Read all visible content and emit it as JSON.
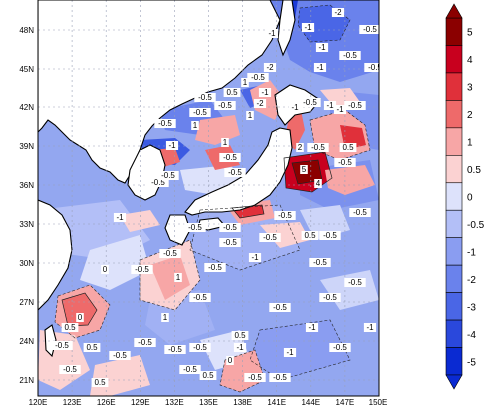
{
  "map": {
    "type": "filled-contour-map",
    "region": "Japan Sea / Northwest Pacific",
    "lon_range": [
      120,
      150
    ],
    "lat_range": [
      20,
      50
    ],
    "x_ticks": [
      "120E",
      "123E",
      "126E",
      "129E",
      "132E",
      "135E",
      "138E",
      "141E",
      "144E",
      "147E",
      "150E"
    ],
    "y_ticks": [
      "21N",
      "24N",
      "27N",
      "30N",
      "33N",
      "36N",
      "39N",
      "42N",
      "45N",
      "48N"
    ],
    "grid": "dashed",
    "contour_labels": [
      {
        "text": "-2"
      },
      {
        "text": "-1"
      },
      {
        "text": "-0.5"
      },
      {
        "text": "-1"
      },
      {
        "text": "-0.5"
      },
      {
        "text": "-0.5"
      },
      {
        "text": "-1"
      },
      {
        "text": "-2"
      },
      {
        "text": "-1"
      },
      {
        "text": "-0.5"
      },
      {
        "text": "1"
      },
      {
        "text": "-1"
      },
      {
        "text": "-0.5"
      },
      {
        "text": "0.5"
      },
      {
        "text": "-0.5"
      },
      {
        "text": "-2"
      },
      {
        "text": "1"
      },
      {
        "text": "-1"
      },
      {
        "text": "-0.5"
      },
      {
        "text": "-1"
      },
      {
        "text": "-0.5"
      },
      {
        "text": "-1"
      },
      {
        "text": "-0.5"
      },
      {
        "text": "1"
      },
      {
        "text": "-0.5"
      },
      {
        "text": "-1"
      },
      {
        "text": "1"
      },
      {
        "text": "-0.5"
      },
      {
        "text": "-0.5"
      },
      {
        "text": "5"
      },
      {
        "text": "4"
      },
      {
        "text": "2"
      },
      {
        "text": "-0.5"
      },
      {
        "text": "0.5"
      },
      {
        "text": "-0.5"
      },
      {
        "text": "-0.5"
      },
      {
        "text": "-0.5"
      },
      {
        "text": "-1"
      },
      {
        "text": "-0.5"
      },
      {
        "text": "-0.5"
      },
      {
        "text": "0.5"
      },
      {
        "text": "-0.5"
      },
      {
        "text": "-0.5"
      },
      {
        "text": "-0.5"
      },
      {
        "text": "0"
      },
      {
        "text": "1"
      },
      {
        "text": "-0.5"
      },
      {
        "text": "-0.5"
      },
      {
        "text": "0.5"
      },
      {
        "text": "0"
      },
      {
        "text": "-0.5"
      },
      {
        "text": "0.5"
      },
      {
        "text": "-0.5"
      },
      {
        "text": "-0.5"
      },
      {
        "text": "-1"
      },
      {
        "text": "1"
      },
      {
        "text": "-0.5"
      },
      {
        "text": "-0.5"
      },
      {
        "text": "-0.5"
      },
      {
        "text": "0.5"
      },
      {
        "text": "0.5"
      },
      {
        "text": "-0.5"
      },
      {
        "text": "-1"
      },
      {
        "text": "-0.5"
      },
      {
        "text": "-0.5"
      },
      {
        "text": "-0.5"
      },
      {
        "text": "-0.5"
      },
      {
        "text": "-0.5"
      },
      {
        "text": "-1"
      },
      {
        "text": "-0.5"
      },
      {
        "text": "-1"
      },
      {
        "text": "-1"
      },
      {
        "text": "-0.5"
      },
      {
        "text": "-0.5"
      },
      {
        "text": "0"
      },
      {
        "text": "-0.5"
      },
      {
        "text": "-0.5"
      },
      {
        "text": "0.5"
      },
      {
        "text": "-0.5"
      }
    ],
    "colors": {
      "land": "#ffffff",
      "coast": "#000000",
      "grid": "#9aa0b8"
    }
  },
  "colorbar": {
    "levels": [
      "5",
      "4",
      "3",
      "2",
      "1",
      "0.5",
      "0",
      "-0.5",
      "-1",
      "-2",
      "-3",
      "-4",
      "-5"
    ],
    "colors": [
      "#8b0000",
      "#c8001e",
      "#e0303a",
      "#ee6a6a",
      "#f7a6a6",
      "#fbd2d2",
      "#dde2fb",
      "#b3bff7",
      "#8a9df1",
      "#6a82ec",
      "#4a66e6",
      "#2a48dc",
      "#0a2ad2"
    ],
    "extend": "both"
  }
}
